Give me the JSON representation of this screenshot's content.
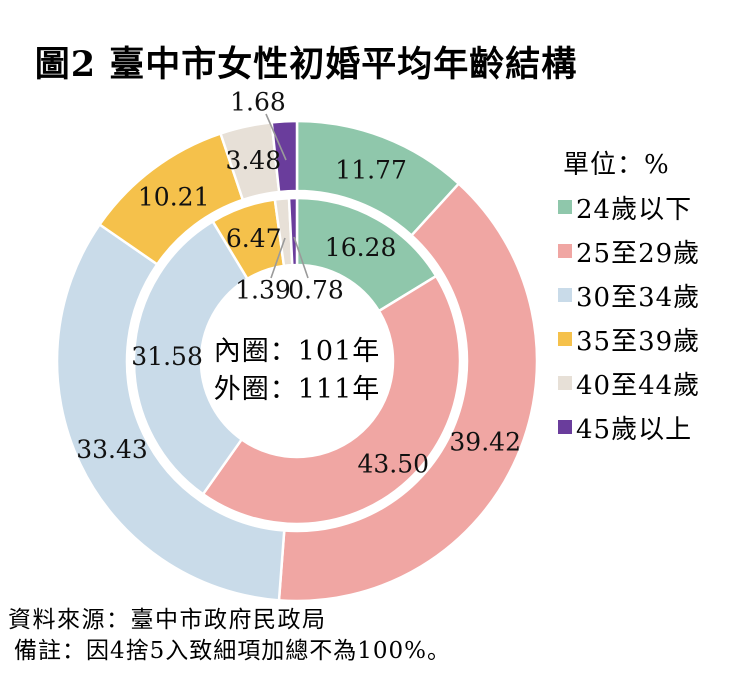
{
  "title": "圖2 臺中市女性初婚平均年齡結構",
  "legend": {
    "unit_label": "單位：%",
    "items": [
      {
        "label": "24歲以下",
        "color": "#8FC7AB"
      },
      {
        "label": "25至29歲",
        "color": "#F0A6A3"
      },
      {
        "label": "30至34歲",
        "color": "#C9DBE9"
      },
      {
        "label": "35至39歲",
        "color": "#F5C14B"
      },
      {
        "label": "40至44歲",
        "color": "#E7E0D7"
      },
      {
        "label": "45歲以上",
        "color": "#6A3D9C"
      }
    ]
  },
  "center_label": {
    "line1": "內圈：101年",
    "line2": "外圈：111年"
  },
  "footer": {
    "source": "資料來源：臺中市政府民政局",
    "note": "備註：因4捨5入致細項加總不為100%。"
  },
  "chart_data": {
    "type": "pie",
    "subtype": "double_ring_donut",
    "title": "圖2 臺中市女性初婚平均年齡結構",
    "unit": "%",
    "categories": [
      "24歲以下",
      "25至29歲",
      "30至34歲",
      "35至39歲",
      "40至44歲",
      "45歲以上"
    ],
    "colors": [
      "#8FC7AB",
      "#F0A6A3",
      "#C9DBE9",
      "#F5C14B",
      "#E7E0D7",
      "#6A3D9C"
    ],
    "series": [
      {
        "name": "101年",
        "ring": "inner",
        "values": [
          16.28,
          43.5,
          31.58,
          6.47,
          1.39,
          0.78
        ]
      },
      {
        "name": "111年",
        "ring": "outer",
        "values": [
          11.77,
          39.42,
          33.43,
          10.21,
          3.48,
          1.68
        ]
      }
    ],
    "start_angle_deg": 0,
    "direction": "clockwise",
    "legend_position": "right",
    "annotations": [
      "內圈：101年",
      "外圈：111年",
      "單位：%"
    ]
  }
}
